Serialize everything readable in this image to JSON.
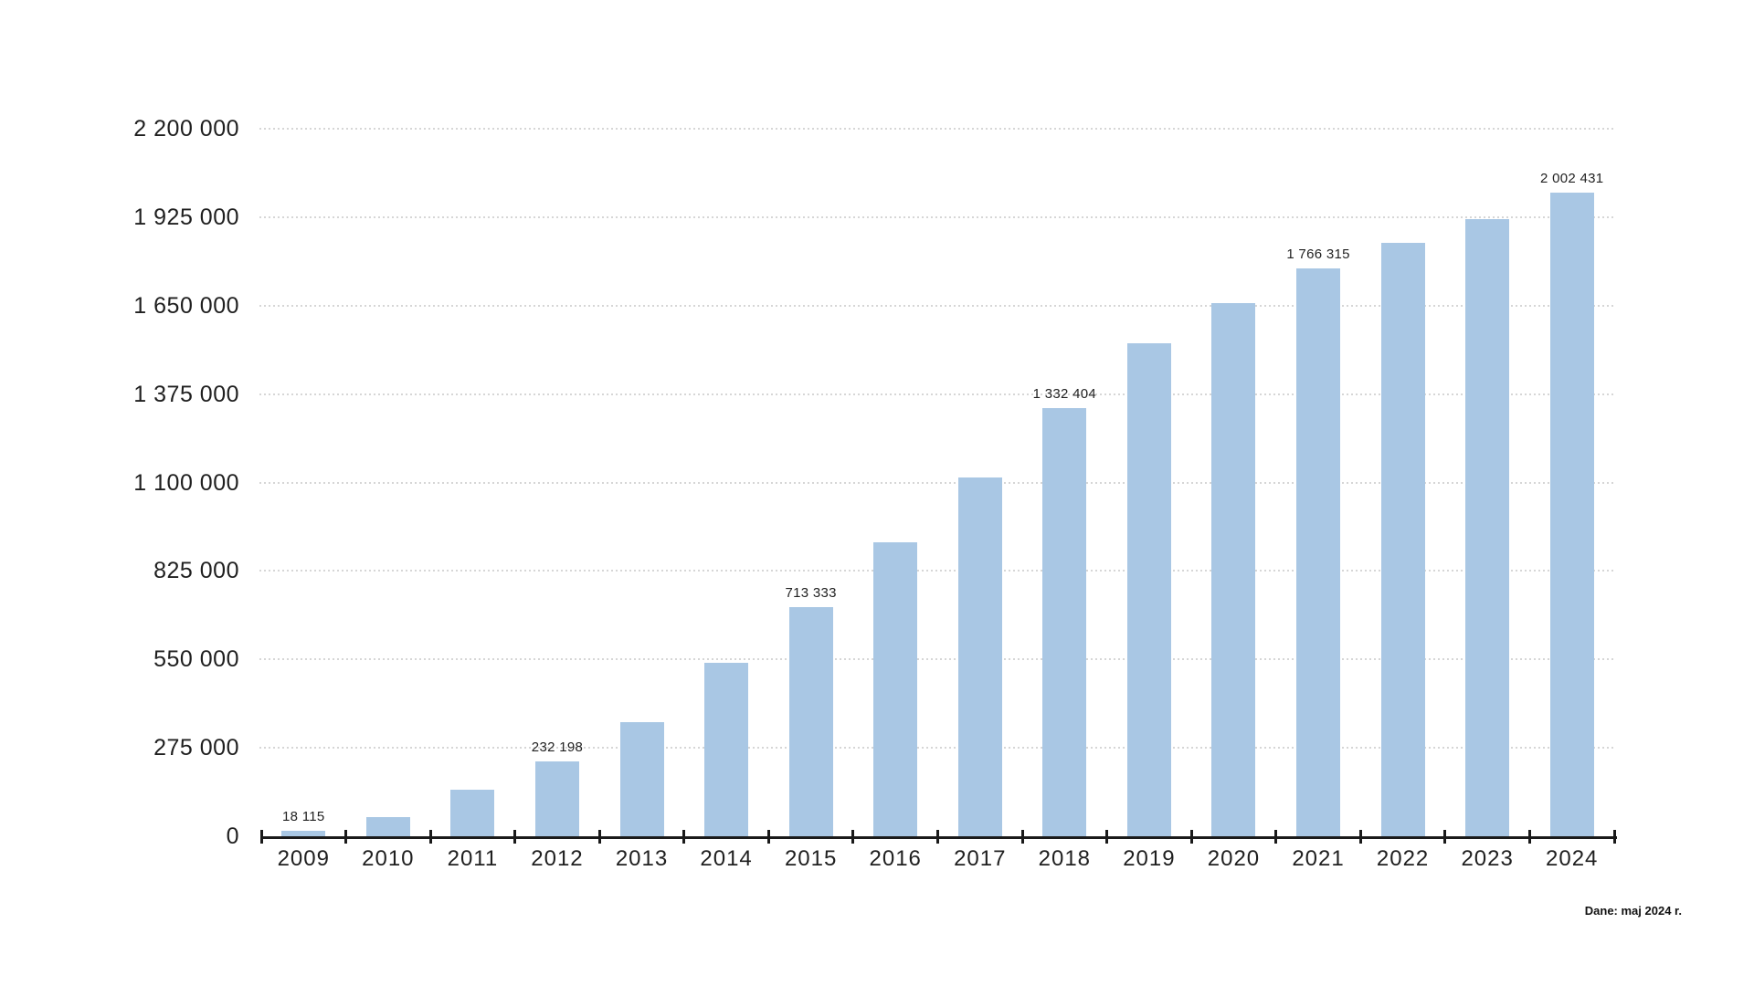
{
  "note": "Dane: maj 2024 r.",
  "colors": {
    "bar": "#a9c7e4",
    "axis": "#1a1a1a",
    "grid": "#d6d6d6",
    "text": "#1f1f1f"
  },
  "chart_data": {
    "type": "bar",
    "title": "",
    "xlabel": "",
    "ylabel": "",
    "categories": [
      "2009",
      "2010",
      "2011",
      "2012",
      "2013",
      "2014",
      "2015",
      "2016",
      "2017",
      "2018",
      "2019",
      "2020",
      "2021",
      "2022",
      "2023",
      "2024"
    ],
    "values": [
      18115,
      60000,
      144000,
      232198,
      356000,
      538000,
      713333,
      914000,
      1117000,
      1332404,
      1534000,
      1659000,
      1766315,
      1846000,
      1918000,
      2002431
    ],
    "value_labels": [
      "18 115",
      "",
      "",
      "232 198",
      "",
      "",
      "713 333",
      "",
      "",
      "1 332 404",
      "",
      "",
      "1 766 315",
      "",
      "",
      "2 002 431"
    ],
    "labeled_points": {
      "2009": "18 115",
      "2012": "232 198",
      "2015": "713 333",
      "2018": "1 332 404",
      "2021": "1 766 315",
      "2024": "2 002 431"
    },
    "ylim": [
      0,
      2200000
    ],
    "yticks": [
      0,
      275000,
      550000,
      825000,
      1100000,
      1375000,
      1650000,
      1925000,
      2200000
    ],
    "ytick_labels": [
      "0",
      "275 000",
      "550 000",
      "825 000",
      "1 100 000",
      "1 375 000",
      "1 650 000",
      "1 925 000",
      "2 200 000"
    ],
    "grid": "horizontal-dotted",
    "legend": "none",
    "annotation": "Dane: maj 2024 r."
  }
}
